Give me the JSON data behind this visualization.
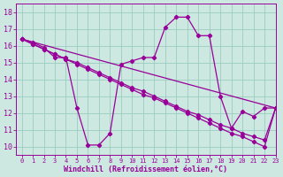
{
  "xlabel": "Windchill (Refroidissement éolien,°C)",
  "background_color": "#cce8e0",
  "grid_color": "#99ccc0",
  "line_color": "#990099",
  "xlim": [
    -0.5,
    23
  ],
  "ylim": [
    9.5,
    18.5
  ],
  "xticks": [
    0,
    1,
    2,
    3,
    4,
    5,
    6,
    7,
    8,
    9,
    10,
    11,
    12,
    13,
    14,
    15,
    16,
    17,
    18,
    19,
    20,
    21,
    22,
    23
  ],
  "yticks": [
    10,
    11,
    12,
    13,
    14,
    15,
    16,
    17,
    18
  ],
  "curve1_x": [
    0,
    1,
    2,
    3,
    4,
    5,
    6,
    7,
    8,
    9,
    10,
    11,
    12,
    13,
    14,
    15,
    16,
    17,
    18,
    19,
    20,
    21,
    22,
    23
  ],
  "curve1_y": [
    16.4,
    16.2,
    15.9,
    15.3,
    15.3,
    12.3,
    10.1,
    10.1,
    10.8,
    14.9,
    15.1,
    15.3,
    15.3,
    17.1,
    17.7,
    17.7,
    16.6,
    16.6,
    13.0,
    11.1,
    12.1,
    11.8,
    12.3,
    12.3
  ],
  "curve2_x": [
    0,
    1,
    2,
    3,
    4,
    5,
    6,
    7,
    8,
    9,
    10,
    11,
    12,
    13,
    14,
    15,
    16,
    17,
    18,
    19,
    20,
    21,
    22,
    23
  ],
  "curve2_y": [
    16.4,
    16.1,
    15.8,
    15.5,
    15.2,
    15.0,
    14.7,
    14.4,
    14.1,
    13.8,
    13.5,
    13.3,
    13.0,
    12.7,
    12.4,
    12.1,
    11.9,
    11.6,
    11.3,
    11.1,
    10.8,
    10.6,
    10.4,
    12.3
  ],
  "curve3_x": [
    0,
    1,
    2,
    3,
    4,
    5,
    6,
    7,
    8,
    9,
    10,
    11,
    12,
    13,
    14,
    15,
    16,
    17,
    18,
    19,
    20,
    21,
    22,
    23
  ],
  "curve3_y": [
    16.4,
    16.1,
    15.8,
    15.5,
    15.2,
    14.9,
    14.6,
    14.3,
    14.0,
    13.7,
    13.4,
    13.1,
    12.9,
    12.6,
    12.3,
    12.0,
    11.7,
    11.4,
    11.1,
    10.8,
    10.6,
    10.3,
    10.0,
    12.3
  ],
  "curve4_x": [
    0,
    23
  ],
  "curve4_y": [
    16.4,
    12.3
  ]
}
